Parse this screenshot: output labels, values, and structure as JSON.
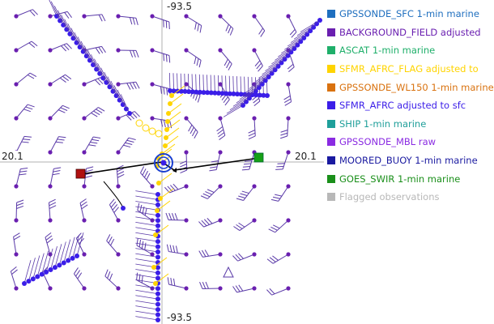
{
  "axis_labels": {
    "top": "-93.5",
    "bottom": "-93.5",
    "left": "20.1",
    "right": "20.1"
  },
  "colors": {
    "wind_barb": "#5a3aa8",
    "background_dot": "#6a1fb0",
    "sfmr_afrc_dot": "#3b1ee8",
    "sfmr_flag": "#ffd400",
    "track": "#000000",
    "start_marker": "#b01010",
    "end_marker": "#16a016",
    "center_ring": "#1a3fd0"
  },
  "legend": [
    {
      "label": "GPSSONDE_SFC 1-min marine",
      "color": "#1f6fbf"
    },
    {
      "label": "BACKGROUND_FIELD adjusted",
      "color": "#6a1fb0"
    },
    {
      "label": "ASCAT 1-min marine",
      "color": "#1faf6a"
    },
    {
      "label": "SFMR_AFRC_FLAG adjusted to",
      "color": "#ffd400"
    },
    {
      "label": "GPSSONDE_WL150 1-min marine",
      "color": "#d9720f"
    },
    {
      "label": "SFMR_AFRC adjusted to sfc",
      "color": "#3b1ee8"
    },
    {
      "label": "SHIP 1-min marine",
      "color": "#1f9f9a"
    },
    {
      "label": "GPSSONDE_MBL raw",
      "color": "#8a2be2"
    },
    {
      "label": "MOORED_BUOY 1-min marine",
      "color": "#1a1aa0"
    },
    {
      "label": "GOES_SWIR 1-min marine",
      "color": "#1a8f1a"
    },
    {
      "label": "Flagged observations",
      "color": "#b8b8b8"
    }
  ]
}
